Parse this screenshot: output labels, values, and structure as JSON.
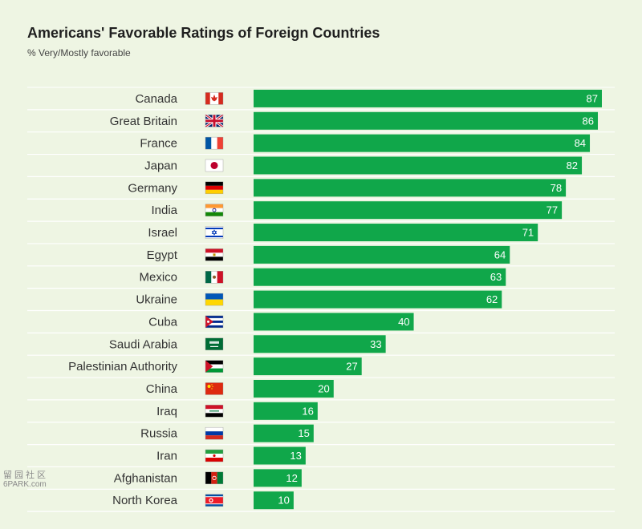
{
  "header": {
    "title": "Americans' Favorable Ratings of Foreign Countries",
    "subtitle": "% Very/Mostly favorable"
  },
  "watermark": {
    "glyphs": "留园社区",
    "text": "6PARK.com"
  },
  "colors": {
    "background": "#eef5e3",
    "bar": "#10a74a",
    "row_line": "#ffffff",
    "label": "#333333",
    "value_label": "#ffffff"
  },
  "chart_data": {
    "type": "bar",
    "orientation": "horizontal",
    "title": "Americans' Favorable Ratings of Foreign Countries",
    "subtitle": "% Very/Mostly favorable",
    "categories": [
      "Canada",
      "Great Britain",
      "France",
      "Japan",
      "Germany",
      "India",
      "Israel",
      "Egypt",
      "Mexico",
      "Ukraine",
      "Cuba",
      "Saudi Arabia",
      "Palestinian Authority",
      "China",
      "Iraq",
      "Russia",
      "Iran",
      "Afghanistan",
      "North Korea"
    ],
    "values": [
      87,
      86,
      84,
      82,
      78,
      77,
      71,
      64,
      63,
      62,
      40,
      33,
      27,
      20,
      16,
      15,
      13,
      12,
      10
    ],
    "flag_icons": [
      "flag-canada-icon",
      "flag-great-britain-icon",
      "flag-france-icon",
      "flag-japan-icon",
      "flag-germany-icon",
      "flag-india-icon",
      "flag-israel-icon",
      "flag-egypt-icon",
      "flag-mexico-icon",
      "flag-ukraine-icon",
      "flag-cuba-icon",
      "flag-saudi-arabia-icon",
      "flag-palestinian-authority-icon",
      "flag-china-icon",
      "flag-iraq-icon",
      "flag-russia-icon",
      "flag-iran-icon",
      "flag-afghanistan-icon",
      "flag-north-korea-icon"
    ],
    "xlim": [
      0,
      100
    ],
    "data_labels": "inside-end",
    "grid": false,
    "legend": "none"
  }
}
